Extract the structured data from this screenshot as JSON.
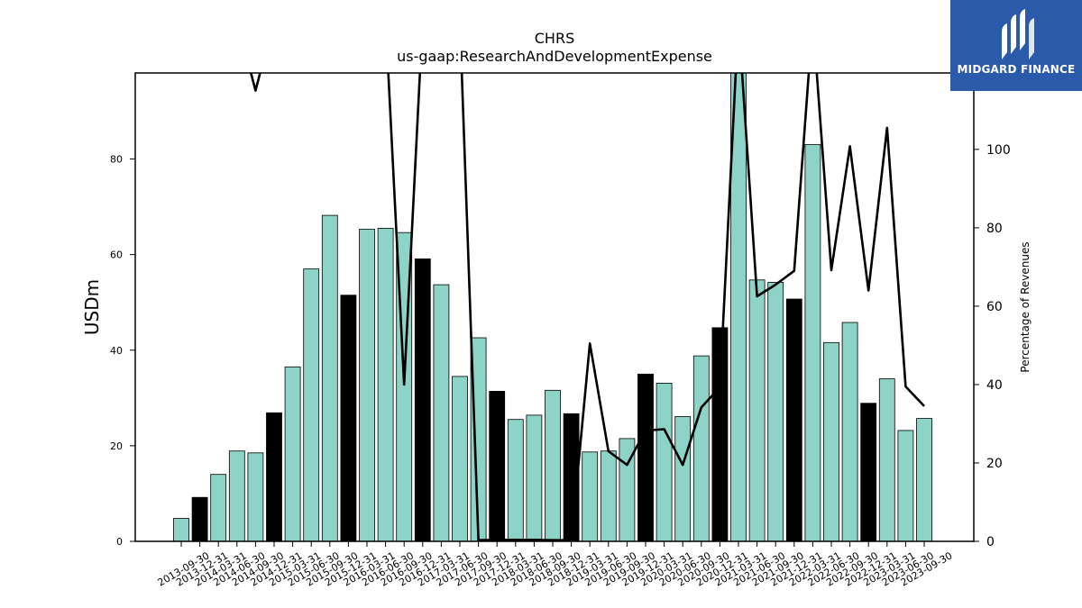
{
  "chart_data": {
    "type": "bar",
    "title": "CHRS",
    "subtitle": "us-gaap:ResearchAndDevelopmentExpense",
    "ylabel": "USDm",
    "y2label": "Percentage of Revenues",
    "ylim": [
      0,
      98
    ],
    "y2lim": [
      0,
      119.5
    ],
    "yticks": [
      0,
      20,
      40,
      60,
      80
    ],
    "y2ticks": [
      0,
      20,
      40,
      60,
      80,
      100
    ],
    "grid": false,
    "legend": "none",
    "categories": [
      "2013-09-30",
      "2013-12-31",
      "2014-03-31",
      "2014-06-30",
      "2014-09-30",
      "2014-12-31",
      "2015-03-31",
      "2015-06-30",
      "2015-09-30",
      "2015-12-31",
      "2016-03-31",
      "2016-06-30",
      "2016-09-30",
      "2016-12-31",
      "2017-03-31",
      "2017-06-30",
      "2017-09-30",
      "2017-12-31",
      "2018-03-31",
      "2018-06-30",
      "2018-09-30",
      "2018-12-31",
      "2019-03-31",
      "2019-06-30",
      "2019-09-30",
      "2019-12-31",
      "2020-03-31",
      "2020-06-30",
      "2020-09-30",
      "2020-12-31",
      "2021-03-31",
      "2021-06-30",
      "2021-09-30",
      "2021-12-31",
      "2022-03-31",
      "2022-06-30",
      "2022-09-30",
      "2022-12-31",
      "2023-03-31",
      "2023-06-30",
      "2023-09-30"
    ],
    "series": [
      {
        "type": "bar",
        "axis": "left",
        "values": [
          4.8,
          9.2,
          14.0,
          18.9,
          18.5,
          26.9,
          36.5,
          57.0,
          68.2,
          51.5,
          65.3,
          65.5,
          64.6,
          59.1,
          53.7,
          34.5,
          42.6,
          31.4,
          25.5,
          26.4,
          31.6,
          26.7,
          18.7,
          18.9,
          21.5,
          35.0,
          33.1,
          26.1,
          38.8,
          44.7,
          98.0,
          54.7,
          54.2,
          50.7,
          83.0,
          41.6,
          45.8,
          28.9,
          34.0,
          23.2,
          25.7
        ],
        "highlight": [
          false,
          true,
          false,
          false,
          false,
          true,
          false,
          false,
          false,
          true,
          false,
          false,
          false,
          true,
          false,
          false,
          false,
          true,
          false,
          false,
          false,
          true,
          false,
          false,
          false,
          true,
          false,
          false,
          false,
          true,
          false,
          false,
          false,
          true,
          false,
          false,
          false,
          true,
          false,
          false,
          false
        ]
      },
      {
        "type": "line",
        "axis": "right",
        "values": [
          null,
          null,
          null,
          null,
          115,
          null,
          null,
          null,
          null,
          null,
          null,
          null,
          40,
          null,
          null,
          null,
          0.3,
          0.4,
          0.4,
          0.4,
          0.3,
          0.3,
          50.5,
          23.0,
          19.5,
          28.3,
          28.6,
          19.5,
          34.2,
          39.3,
          null,
          62.5,
          65.5,
          69.0,
          null,
          69.2,
          100.8,
          64.0,
          105.5,
          39.5,
          34.5
        ]
      }
    ],
    "colors": {
      "bar": "#8dd3c7",
      "bar_highlight": "#000000",
      "line": "#000000",
      "logo_bg": "#2b5aab"
    }
  },
  "logo": {
    "text": "MIDGARD FINANCE",
    "icon": "midgard-logo-icon"
  }
}
